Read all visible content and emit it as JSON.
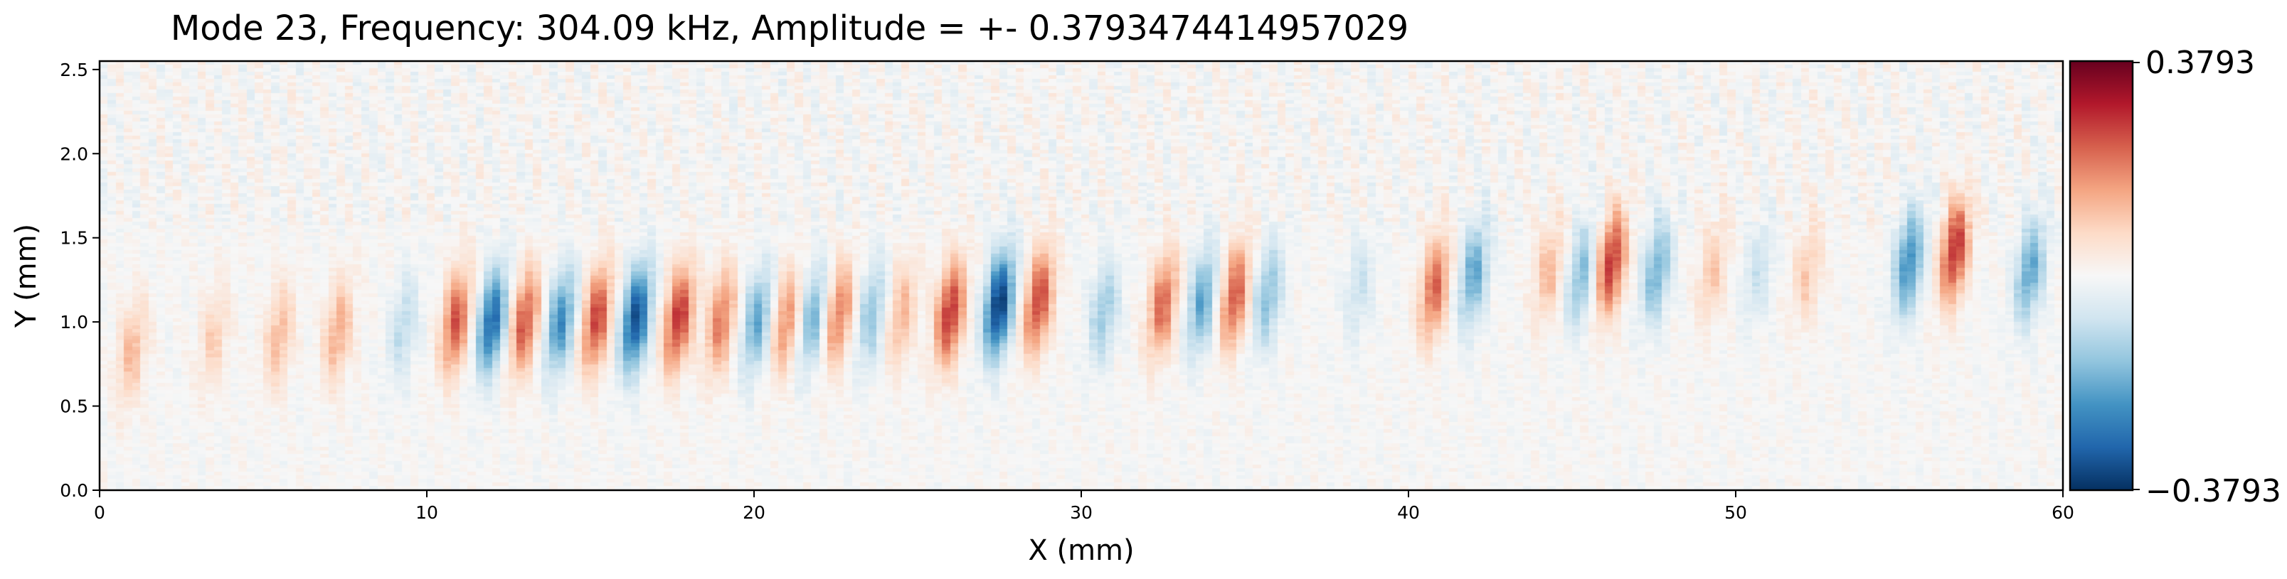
{
  "chart_data": {
    "type": "heatmap",
    "title": "Mode 23, Frequency: 304.09 kHz, Amplitude = +- 0.3793474414957029",
    "xlabel": "X (mm)",
    "ylabel": "Y (mm)",
    "xlim": [
      0,
      60
    ],
    "ylim": [
      0,
      2.55
    ],
    "xticks": [
      "0",
      "10",
      "20",
      "30",
      "40",
      "50",
      "60"
    ],
    "yticks": [
      "0.0",
      "0.5",
      "1.0",
      "1.5",
      "2.0",
      "2.5"
    ],
    "colormap": "RdBu_r",
    "colorbar": {
      "max_label": "0.3793",
      "min_label": "−0.3793",
      "vmin": -0.3793,
      "vmax": 0.3793
    },
    "colors": {
      "red_extreme": "#67001f",
      "blue_extreme": "#053061",
      "center": "#f7f7f7"
    },
    "wave_packets": [
      {
        "x": 1.0,
        "y": 0.82,
        "amp": 0.12
      },
      {
        "x": 3.5,
        "y": 0.9,
        "amp": 0.09
      },
      {
        "x": 5.5,
        "y": 0.92,
        "amp": 0.12
      },
      {
        "x": 7.3,
        "y": 0.94,
        "amp": 0.14
      },
      {
        "x": 9.3,
        "y": 0.97,
        "amp": -0.1
      },
      {
        "x": 10.9,
        "y": 1.0,
        "amp": 0.24
      },
      {
        "x": 12.0,
        "y": 1.0,
        "amp": -0.3
      },
      {
        "x": 13.0,
        "y": 1.0,
        "amp": 0.24
      },
      {
        "x": 14.1,
        "y": 1.0,
        "amp": -0.24
      },
      {
        "x": 15.2,
        "y": 1.02,
        "amp": 0.26
      },
      {
        "x": 16.4,
        "y": 1.02,
        "amp": -0.34
      },
      {
        "x": 17.7,
        "y": 1.02,
        "amp": 0.28
      },
      {
        "x": 19.0,
        "y": 1.0,
        "amp": 0.2
      },
      {
        "x": 20.1,
        "y": 1.0,
        "amp": -0.2
      },
      {
        "x": 21.0,
        "y": 1.0,
        "amp": 0.18
      },
      {
        "x": 21.8,
        "y": 1.02,
        "amp": -0.18
      },
      {
        "x": 22.6,
        "y": 1.04,
        "amp": 0.2
      },
      {
        "x": 23.6,
        "y": 1.04,
        "amp": -0.15
      },
      {
        "x": 24.5,
        "y": 1.05,
        "amp": 0.13
      },
      {
        "x": 26.0,
        "y": 1.05,
        "amp": 0.28
      },
      {
        "x": 27.5,
        "y": 1.1,
        "amp": -0.37
      },
      {
        "x": 28.7,
        "y": 1.12,
        "amp": 0.26
      },
      {
        "x": 30.7,
        "y": 1.05,
        "amp": -0.14
      },
      {
        "x": 32.5,
        "y": 1.1,
        "amp": 0.22
      },
      {
        "x": 33.7,
        "y": 1.12,
        "amp": -0.2
      },
      {
        "x": 34.7,
        "y": 1.15,
        "amp": 0.24
      },
      {
        "x": 35.7,
        "y": 1.15,
        "amp": -0.16
      },
      {
        "x": 38.5,
        "y": 1.2,
        "amp": -0.08
      },
      {
        "x": 40.8,
        "y": 1.2,
        "amp": 0.22
      },
      {
        "x": 42.0,
        "y": 1.28,
        "amp": -0.2
      },
      {
        "x": 44.3,
        "y": 1.3,
        "amp": 0.12
      },
      {
        "x": 45.3,
        "y": 1.28,
        "amp": -0.16
      },
      {
        "x": 46.2,
        "y": 1.35,
        "amp": 0.28
      },
      {
        "x": 47.6,
        "y": 1.3,
        "amp": -0.18
      },
      {
        "x": 49.3,
        "y": 1.3,
        "amp": 0.1
      },
      {
        "x": 50.7,
        "y": 1.3,
        "amp": -0.08
      },
      {
        "x": 52.2,
        "y": 1.3,
        "amp": 0.1
      },
      {
        "x": 55.3,
        "y": 1.35,
        "amp": -0.24
      },
      {
        "x": 56.7,
        "y": 1.42,
        "amp": 0.28
      },
      {
        "x": 59.0,
        "y": 1.3,
        "amp": -0.2
      }
    ]
  }
}
